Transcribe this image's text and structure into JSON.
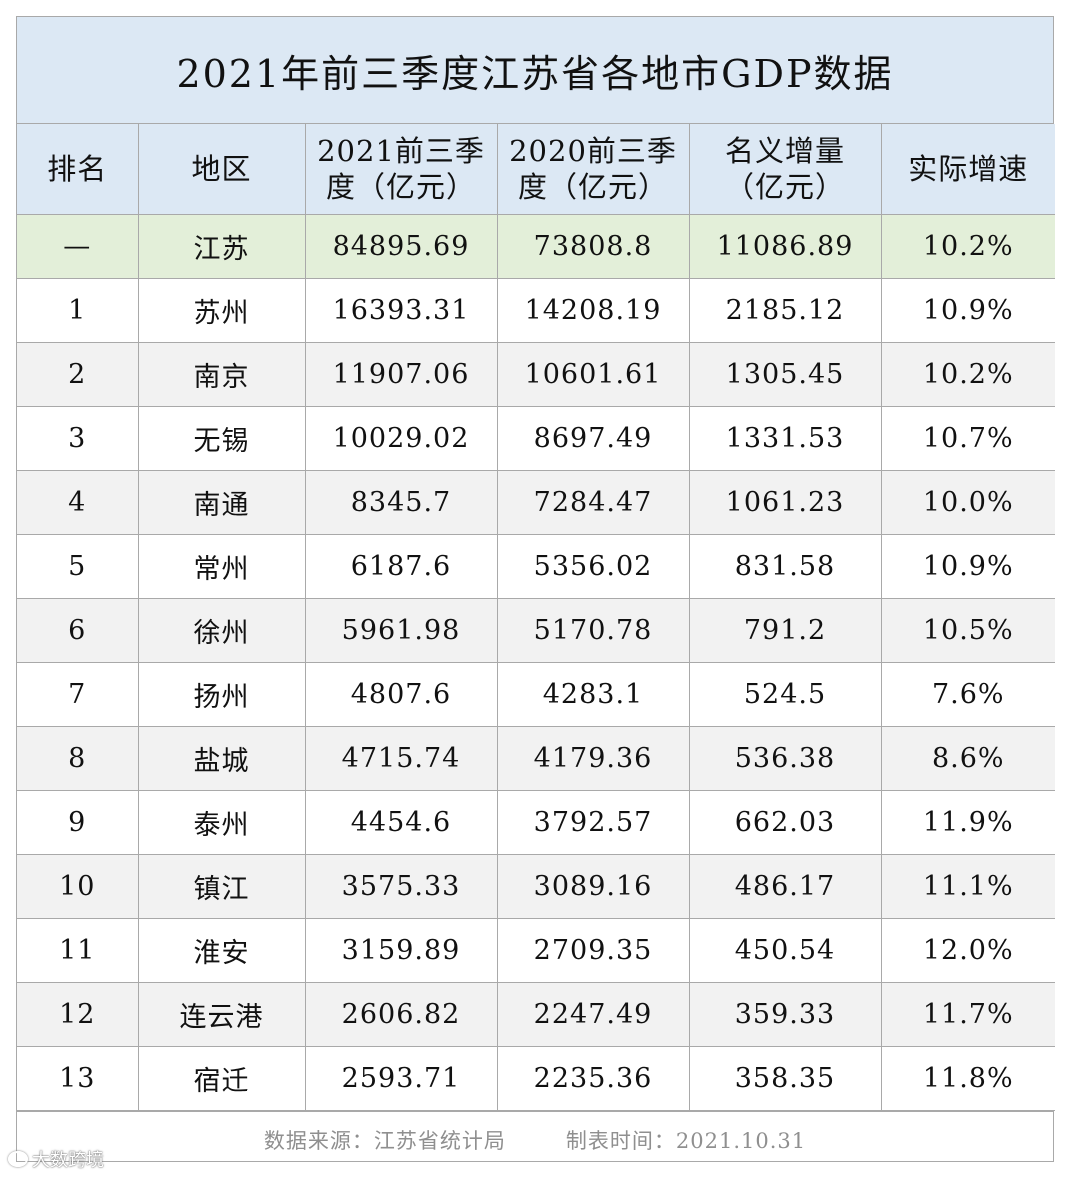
{
  "title": "2021年前三季度江苏省各地市GDP数据",
  "headers": {
    "rank": "排名",
    "region": "地区",
    "gdp2021": [
      "2021前三季",
      "度（亿元）"
    ],
    "gdp2020": [
      "2020前三季",
      "度（亿元）"
    ],
    "increase": [
      "名义增量",
      "（亿元）"
    ],
    "growth": "实际增速"
  },
  "rows": [
    {
      "rank": "—",
      "region": "江苏",
      "gdp2021": "84895.69",
      "gdp2020": "73808.8",
      "increase": "11086.89",
      "growth": "10.2%"
    },
    {
      "rank": "1",
      "region": "苏州",
      "gdp2021": "16393.31",
      "gdp2020": "14208.19",
      "increase": "2185.12",
      "growth": "10.9%"
    },
    {
      "rank": "2",
      "region": "南京",
      "gdp2021": "11907.06",
      "gdp2020": "10601.61",
      "increase": "1305.45",
      "growth": "10.2%"
    },
    {
      "rank": "3",
      "region": "无锡",
      "gdp2021": "10029.02",
      "gdp2020": "8697.49",
      "increase": "1331.53",
      "growth": "10.7%"
    },
    {
      "rank": "4",
      "region": "南通",
      "gdp2021": "8345.7",
      "gdp2020": "7284.47",
      "increase": "1061.23",
      "growth": "10.0%"
    },
    {
      "rank": "5",
      "region": "常州",
      "gdp2021": "6187.6",
      "gdp2020": "5356.02",
      "increase": "831.58",
      "growth": "10.9%"
    },
    {
      "rank": "6",
      "region": "徐州",
      "gdp2021": "5961.98",
      "gdp2020": "5170.78",
      "increase": "791.2",
      "growth": "10.5%"
    },
    {
      "rank": "7",
      "region": "扬州",
      "gdp2021": "4807.6",
      "gdp2020": "4283.1",
      "increase": "524.5",
      "growth": "7.6%"
    },
    {
      "rank": "8",
      "region": "盐城",
      "gdp2021": "4715.74",
      "gdp2020": "4179.36",
      "increase": "536.38",
      "growth": "8.6%"
    },
    {
      "rank": "9",
      "region": "泰州",
      "gdp2021": "4454.6",
      "gdp2020": "3792.57",
      "increase": "662.03",
      "growth": "11.9%"
    },
    {
      "rank": "10",
      "region": "镇江",
      "gdp2021": "3575.33",
      "gdp2020": "3089.16",
      "increase": "486.17",
      "growth": "11.1%"
    },
    {
      "rank": "11",
      "region": "淮安",
      "gdp2021": "3159.89",
      "gdp2020": "2709.35",
      "increase": "450.54",
      "growth": "12.0%"
    },
    {
      "rank": "12",
      "region": "连云港",
      "gdp2021": "2606.82",
      "gdp2020": "2247.49",
      "increase": "359.33",
      "growth": "11.7%"
    },
    {
      "rank": "13",
      "region": "宿迁",
      "gdp2021": "2593.71",
      "gdp2020": "2235.36",
      "increase": "358.35",
      "growth": "11.8%"
    }
  ],
  "footer": {
    "source": "数据来源：江苏省统计局",
    "date": "制表时间：2021.10.31"
  },
  "watermark": "大数跨境",
  "colors": {
    "header_bg": "#dce8f4",
    "province_row_bg": "#e3efd9",
    "alt_row_bg": "#f2f2f2",
    "grid": "#a9a9a9"
  }
}
